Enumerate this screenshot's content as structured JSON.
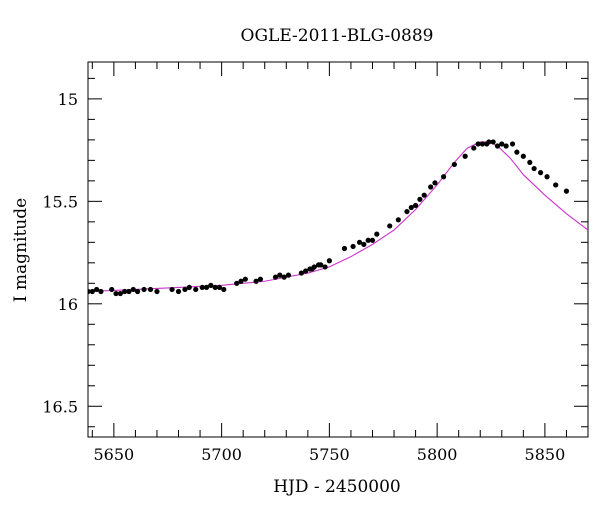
{
  "chart_data": {
    "type": "scatter",
    "title": "OGLE-2011-BLG-0889",
    "xlabel": "HJD - 2450000",
    "ylabel": "I magnitude",
    "xlim": [
      5638,
      5870
    ],
    "ylim": [
      16.65,
      14.82
    ],
    "y_inverted": true,
    "xticks_major": [
      5650,
      5700,
      5750,
      5800,
      5850
    ],
    "xticks_minor_step": 10,
    "yticks_major": [
      15,
      15.5,
      16,
      16.5
    ],
    "yticks_minor_step": 0.1,
    "grid": false,
    "point_color": "#000000",
    "model_color": "#cc33cc",
    "series": [
      {
        "kind": "points",
        "x": [
          5638,
          5640,
          5642,
          5644,
          5649,
          5651,
          5653,
          5655,
          5657,
          5659,
          5661,
          5664,
          5667,
          5670,
          5677,
          5680,
          5683,
          5685,
          5688,
          5691,
          5693,
          5695,
          5697,
          5699,
          5701,
          5707,
          5709,
          5711,
          5716,
          5718,
          5725,
          5727,
          5729,
          5731,
          5737,
          5739,
          5741,
          5742,
          5743,
          5745,
          5746,
          5748,
          5750,
          5757,
          5761,
          5764,
          5766,
          5768,
          5770,
          5772,
          5778,
          5782,
          5786,
          5788,
          5790,
          5792,
          5794,
          5797,
          5799,
          5803,
          5808,
          5813,
          5817,
          5819,
          5821,
          5823,
          5824,
          5826,
          5828,
          5830,
          5832,
          5835,
          5837,
          5840,
          5843,
          5845,
          5848,
          5851,
          5855,
          5860
        ],
        "y": [
          15.94,
          15.94,
          15.93,
          15.94,
          15.93,
          15.95,
          15.95,
          15.94,
          15.94,
          15.93,
          15.94,
          15.93,
          15.93,
          15.94,
          15.93,
          15.94,
          15.93,
          15.92,
          15.93,
          15.92,
          15.92,
          15.91,
          15.92,
          15.92,
          15.93,
          15.9,
          15.89,
          15.88,
          15.89,
          15.88,
          15.87,
          15.86,
          15.87,
          15.86,
          15.85,
          15.84,
          15.83,
          15.83,
          15.82,
          15.81,
          15.81,
          15.82,
          15.79,
          15.73,
          15.72,
          15.7,
          15.71,
          15.69,
          15.69,
          15.66,
          15.62,
          15.59,
          15.55,
          15.53,
          15.52,
          15.49,
          15.47,
          15.43,
          15.41,
          15.38,
          15.32,
          15.28,
          15.24,
          15.22,
          15.22,
          15.22,
          15.21,
          15.21,
          15.23,
          15.22,
          15.23,
          15.22,
          15.26,
          15.28,
          15.31,
          15.34,
          15.36,
          15.38,
          15.42,
          15.45
        ]
      },
      {
        "kind": "model",
        "x": [
          5638,
          5660,
          5680,
          5700,
          5720,
          5740,
          5750,
          5760,
          5770,
          5780,
          5790,
          5800,
          5808,
          5814,
          5820,
          5824,
          5828,
          5834,
          5840,
          5850,
          5860,
          5870
        ],
        "y": [
          15.94,
          15.93,
          15.92,
          15.91,
          15.89,
          15.85,
          15.82,
          15.77,
          15.71,
          15.64,
          15.54,
          15.42,
          15.31,
          15.24,
          15.21,
          15.21,
          15.23,
          15.29,
          15.37,
          15.47,
          15.56,
          15.64
        ]
      }
    ]
  }
}
